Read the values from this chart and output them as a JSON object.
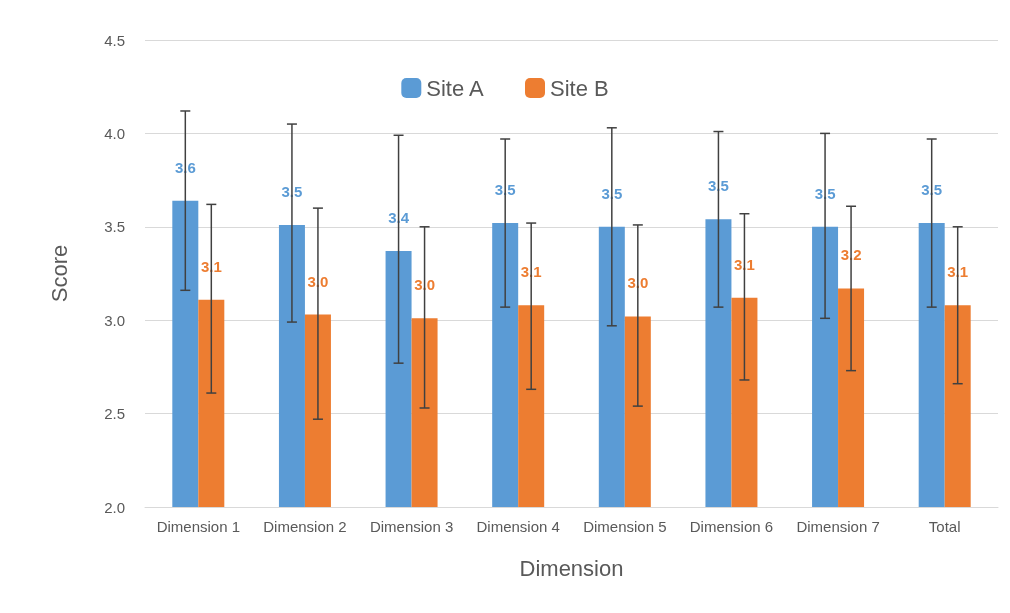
{
  "chart_data": {
    "type": "bar",
    "xlabel": "Dimension",
    "ylabel": "Score",
    "categories": [
      "Dimension 1",
      "Dimension 2",
      "Dimension 3",
      "Dimension 4",
      "Dimension 5",
      "Dimension 6",
      "Dimension 7",
      "Total"
    ],
    "series": [
      {
        "name": "Site A",
        "color": "#5b9bd5",
        "values": [
          3.64,
          3.51,
          3.37,
          3.52,
          3.5,
          3.54,
          3.5,
          3.52
        ],
        "errors": [
          [
            3.16,
            4.12
          ],
          [
            2.99,
            4.05
          ],
          [
            2.77,
            3.99
          ],
          [
            3.07,
            3.97
          ],
          [
            2.97,
            4.03
          ],
          [
            3.07,
            4.01
          ],
          [
            3.01,
            4.0
          ],
          [
            3.07,
            3.97
          ]
        ],
        "value_labels": [
          "3.6",
          "3.5",
          "3.4",
          "3.5",
          "3.5",
          "3.5",
          "3.5",
          "3.5"
        ]
      },
      {
        "name": "Site B",
        "color": "#ed7d31",
        "values": [
          3.11,
          3.03,
          3.01,
          3.08,
          3.02,
          3.12,
          3.17,
          3.08
        ],
        "errors": [
          [
            2.61,
            3.62
          ],
          [
            2.47,
            3.6
          ],
          [
            2.53,
            3.5
          ],
          [
            2.63,
            3.52
          ],
          [
            2.54,
            3.51
          ],
          [
            2.68,
            3.57
          ],
          [
            2.73,
            3.61
          ],
          [
            2.66,
            3.5
          ]
        ],
        "value_labels": [
          "3.1",
          "3.0",
          "3.0",
          "3.1",
          "3.0",
          "3.1",
          "3.2",
          "3.1"
        ]
      }
    ],
    "ylim": [
      2.0,
      4.5
    ],
    "yticks": [
      {
        "value": 2.0,
        "label": "2.0"
      },
      {
        "value": 2.5,
        "label": "2.5"
      },
      {
        "value": 3.0,
        "label": "3.0"
      },
      {
        "value": 3.5,
        "label": "3.5"
      },
      {
        "value": 4.0,
        "label": "4.0"
      },
      {
        "value": 4.5,
        "label": "4.5"
      }
    ],
    "grid": "y",
    "legend": "top"
  }
}
